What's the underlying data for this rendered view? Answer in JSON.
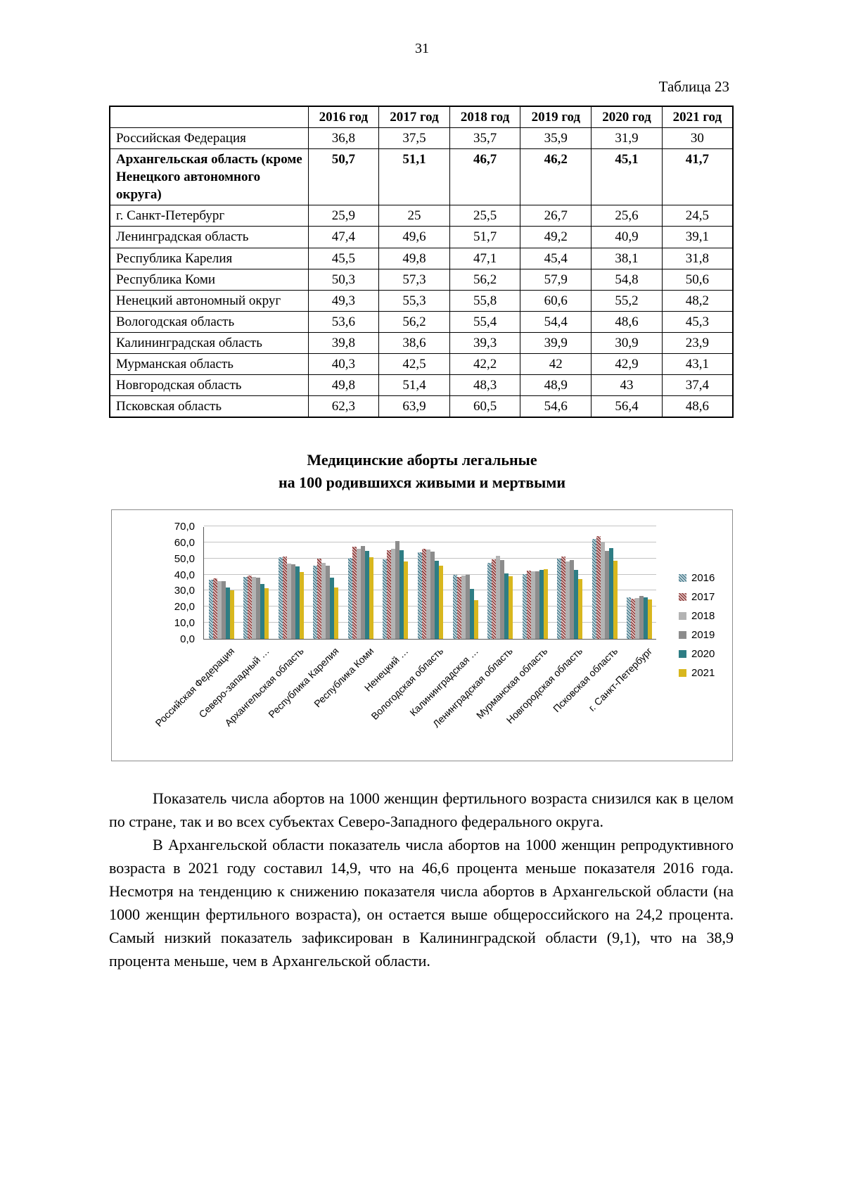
{
  "page": {
    "number": "31"
  },
  "table": {
    "caption": "Таблица 23",
    "columns": [
      "",
      "2016 год",
      "2017 год",
      "2018 год",
      "2019 год",
      "2020 год",
      "2021 год"
    ],
    "rows": [
      {
        "label": "Российская Федерация",
        "bold": false,
        "values": [
          "36,8",
          "37,5",
          "35,7",
          "35,9",
          "31,9",
          "30"
        ]
      },
      {
        "label": "Архангельская область (кроме Ненецкого автономного округа)",
        "bold": true,
        "values": [
          "50,7",
          "51,1",
          "46,7",
          "46,2",
          "45,1",
          "41,7"
        ]
      },
      {
        "label": "г. Санкт-Петербург",
        "bold": false,
        "values": [
          "25,9",
          "25",
          "25,5",
          "26,7",
          "25,6",
          "24,5"
        ]
      },
      {
        "label": "Ленинградская область",
        "bold": false,
        "values": [
          "47,4",
          "49,6",
          "51,7",
          "49,2",
          "40,9",
          "39,1"
        ]
      },
      {
        "label": "Республика Карелия",
        "bold": false,
        "values": [
          "45,5",
          "49,8",
          "47,1",
          "45,4",
          "38,1",
          "31,8"
        ]
      },
      {
        "label": "Республика Коми",
        "bold": false,
        "values": [
          "50,3",
          "57,3",
          "56,2",
          "57,9",
          "54,8",
          "50,6"
        ]
      },
      {
        "label": "Ненецкий автономный округ",
        "bold": false,
        "values": [
          "49,3",
          "55,3",
          "55,8",
          "60,6",
          "55,2",
          "48,2"
        ]
      },
      {
        "label": "Вологодская область",
        "bold": false,
        "values": [
          "53,6",
          "56,2",
          "55,4",
          "54,4",
          "48,6",
          "45,3"
        ]
      },
      {
        "label": "Калининградская область",
        "bold": false,
        "values": [
          "39,8",
          "38,6",
          "39,3",
          "39,9",
          "30,9",
          "23,9"
        ]
      },
      {
        "label": "Мурманская область",
        "bold": false,
        "values": [
          "40,3",
          "42,5",
          "42,2",
          "42",
          "42,9",
          "43,1"
        ]
      },
      {
        "label": "Новгородская область",
        "bold": false,
        "values": [
          "49,8",
          "51,4",
          "48,3",
          "48,9",
          "43",
          "37,4"
        ]
      },
      {
        "label": "Псковская область",
        "bold": false,
        "values": [
          "62,3",
          "63,9",
          "60,5",
          "54,6",
          "56,4",
          "48,6"
        ]
      }
    ]
  },
  "chart": {
    "title_line1": "Медицинские аборты легальные",
    "title_line2": "на 100 родившихся живыми и мертвыми"
  },
  "chart_data": {
    "type": "bar",
    "title": "Медицинские аборты легальные на 100 родившихся живыми и мертвыми",
    "ylim": [
      0,
      70
    ],
    "ytick_step": 10,
    "ytick_labels": [
      "0,0",
      "10,0",
      "20,0",
      "30,0",
      "40,0",
      "50,0",
      "60,0",
      "70,0"
    ],
    "grid": true,
    "legend_position": "right",
    "categories": [
      "Российская Федерация",
      "Северо-западный …",
      "Архангельская область",
      "Республика Карелия",
      "Республика Коми",
      "Ненецкий …",
      "Вологодская область",
      "Калининградская …",
      "Ленинградская область",
      "Мурманская область",
      "Новгородская область",
      "Псковская область",
      "г. Санкт-Петербург"
    ],
    "series": [
      {
        "name": "2016",
        "color": "#4a7e8f",
        "pattern": true,
        "values": [
          36.8,
          38.5,
          50.7,
          45.5,
          50.3,
          49.3,
          53.6,
          39.8,
          47.4,
          40.3,
          49.8,
          62.3,
          25.9
        ]
      },
      {
        "name": "2017",
        "color": "#8e3a38",
        "pattern": true,
        "values": [
          37.5,
          39.5,
          51.1,
          49.8,
          57.3,
          55.3,
          56.2,
          38.6,
          49.6,
          42.5,
          51.4,
          63.9,
          25.0
        ]
      },
      {
        "name": "2018",
        "color": "#b3b3b3",
        "pattern": false,
        "values": [
          35.7,
          38.5,
          46.7,
          47.1,
          56.2,
          55.8,
          55.4,
          39.3,
          51.7,
          42.2,
          48.3,
          60.5,
          25.5
        ]
      },
      {
        "name": "2019",
        "color": "#8c8c8c",
        "pattern": false,
        "values": [
          35.9,
          38.0,
          46.2,
          45.4,
          57.9,
          60.6,
          54.4,
          39.9,
          49.2,
          42.0,
          48.9,
          54.6,
          26.7
        ]
      },
      {
        "name": "2020",
        "color": "#2e7d84",
        "pattern": false,
        "values": [
          31.9,
          34.0,
          45.1,
          38.1,
          54.8,
          55.2,
          48.6,
          30.9,
          40.9,
          42.9,
          43.0,
          56.4,
          25.6
        ]
      },
      {
        "name": "2021",
        "color": "#d8b71e",
        "pattern": false,
        "values": [
          30.0,
          31.5,
          41.7,
          31.8,
          50.6,
          48.2,
          45.3,
          23.9,
          39.1,
          43.1,
          37.4,
          48.6,
          24.5
        ]
      }
    ]
  },
  "paragraphs": [
    "Показатель числа абортов на 1000 женщин фертильного возраста снизился как в целом по стране, так и во всех субъектах Северо-Западного федерального округа.",
    "В Архангельской области показатель числа абортов на 1000 женщин репродуктивного возраста в 2021 году составил 14,9, что на 46,6 процента меньше показателя 2016 года. Несмотря на тенденцию к снижению показателя числа абортов в Архангельской области (на 1000 женщин фертильного возраста), он остается выше общероссийского на 24,2 процента. Самый низкий показатель зафиксирован в Калининградской области (9,1), что на 38,9 процента меньше, чем в Архангельской области."
  ]
}
